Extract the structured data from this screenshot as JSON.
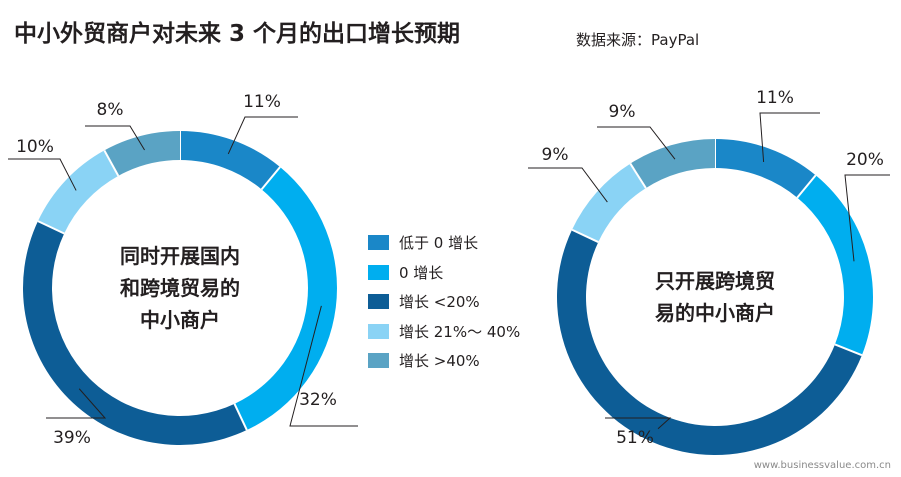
{
  "header": {
    "title": "中小外贸商户对未来 3 个月的出口增长预期",
    "source": "数据来源：PayPal"
  },
  "footer": {
    "url": "www.businessvalue.com.cn"
  },
  "chart_data": [
    {
      "type": "pie",
      "variant": "donut",
      "center_label": [
        "同时开展国内",
        "和跨境贸易的",
        "中小商户"
      ],
      "categories": [
        "低于 0 增长",
        "0 增长",
        "增长 <20%",
        "增长 21%～ 40%",
        "增长 >40%"
      ],
      "values": [
        11,
        32,
        39,
        10,
        8
      ],
      "value_labels": [
        "11%",
        "32%",
        "39%",
        "10%",
        "8%"
      ]
    },
    {
      "type": "pie",
      "variant": "donut",
      "center_label": [
        "只开展跨境贸",
        "易的中小商户"
      ],
      "categories": [
        "低于 0 增长",
        "0 增长",
        "增长 <20%",
        "增长 21%～ 40%",
        "增长 >40%"
      ],
      "values": [
        11,
        20,
        51,
        9,
        9
      ],
      "value_labels": [
        "11%",
        "20%",
        "51%",
        "9%",
        "9%"
      ]
    }
  ],
  "legend": {
    "items": [
      {
        "label": "低于 0 增长",
        "color": "#1a87c8"
      },
      {
        "label": "0 增长",
        "color": "#00aeef"
      },
      {
        "label": "增长 <20%",
        "color": "#0d5d96"
      },
      {
        "label": "增长 21%～ 40%",
        "color": "#8ad3f5"
      },
      {
        "label": "增长 >40%",
        "color": "#5aa3c4"
      }
    ]
  }
}
